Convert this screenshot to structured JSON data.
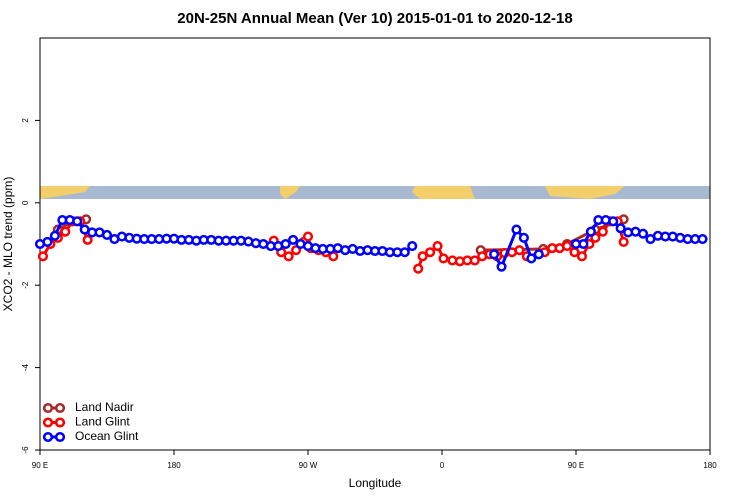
{
  "chart_data": {
    "type": "line",
    "title": "20N-25N Annual Mean (Ver 10)   2015-01-01 to 2020-12-18",
    "x_label": "Longitude",
    "y_label": "XCO2 - MLO trend (ppm)",
    "xlim": [
      90,
      540
    ],
    "ylim": [
      -6,
      4
    ],
    "xticks": [
      {
        "value": 90,
        "label": "90 E"
      },
      {
        "value": 180,
        "label": "180"
      },
      {
        "value": 270,
        "label": "90 W"
      },
      {
        "value": 360,
        "label": "0"
      },
      {
        "value": 450,
        "label": "90 E"
      },
      {
        "value": 540,
        "label": "180"
      }
    ],
    "yticks": [
      -6,
      -4,
      -2,
      0,
      2
    ],
    "legend": "bottom-left",
    "series": [
      {
        "name": "Land Nadir",
        "color": "#a52a2a",
        "x": [
          102,
          112,
          121,
          200,
          386,
          428,
          444,
          463,
          482
        ],
        "values": [
          -0.65,
          -0.45,
          -0.4,
          null,
          -1.15,
          -1.12,
          -1.0,
          -0.65,
          -0.4
        ]
      },
      {
        "name": "Land Glint",
        "color": "#ff0000",
        "x": [
          92,
          97,
          102,
          107,
          112,
          117,
          122,
          200,
          247,
          252,
          257,
          262,
          267,
          270,
          272,
          277,
          282,
          287,
          330,
          344,
          347,
          352,
          357,
          361,
          367,
          372,
          377,
          382,
          387,
          392,
          397,
          402,
          407,
          412,
          417,
          429,
          434,
          439,
          444,
          449,
          454,
          459,
          463,
          468,
          473,
          478,
          482
        ],
        "values": [
          -1.3,
          -1.0,
          -0.85,
          -0.7,
          -0.45,
          -0.45,
          -0.9,
          null,
          -0.92,
          -1.2,
          -1.3,
          -1.15,
          -0.95,
          -0.82,
          -1.1,
          -1.15,
          -1.2,
          -1.3,
          null,
          -1.6,
          -1.3,
          -1.2,
          -1.05,
          -1.35,
          -1.4,
          -1.42,
          -1.4,
          -1.4,
          -1.3,
          -1.25,
          -1.3,
          -1.22,
          -1.2,
          -1.15,
          -1.3,
          -1.2,
          -1.1,
          -1.1,
          -1.05,
          -1.2,
          -1.3,
          -1.0,
          -0.85,
          -0.7,
          -0.45,
          -0.45,
          -0.95
        ]
      },
      {
        "name": "Ocean Glint",
        "color": "#0000ff",
        "x": [
          90,
          95,
          100,
          105,
          110,
          115,
          120,
          125,
          130,
          135,
          140,
          145,
          150,
          155,
          160,
          165,
          170,
          175,
          180,
          185,
          190,
          195,
          200,
          205,
          210,
          215,
          220,
          225,
          230,
          235,
          240,
          245,
          250,
          255,
          260,
          265,
          270,
          275,
          280,
          285,
          290,
          295,
          300,
          305,
          310,
          315,
          320,
          325,
          330,
          335,
          340,
          370,
          395,
          400,
          410,
          415,
          420,
          425,
          437,
          450,
          455,
          460,
          465,
          470,
          475,
          480,
          485,
          490,
          495,
          500,
          505,
          510,
          515,
          520,
          525,
          530,
          535
        ],
        "values": [
          -1.0,
          -0.95,
          -0.8,
          -0.42,
          -0.42,
          -0.45,
          -0.65,
          -0.72,
          -0.72,
          -0.78,
          -0.88,
          -0.82,
          -0.85,
          -0.87,
          -0.88,
          -0.88,
          -0.88,
          -0.87,
          -0.87,
          -0.9,
          -0.9,
          -0.92,
          -0.9,
          -0.9,
          -0.92,
          -0.92,
          -0.92,
          -0.92,
          -0.94,
          -0.98,
          -1.0,
          -1.05,
          -1.05,
          -1.0,
          -0.9,
          -1.0,
          -1.05,
          -1.1,
          -1.12,
          -1.12,
          -1.1,
          -1.15,
          -1.12,
          -1.17,
          -1.15,
          -1.17,
          -1.17,
          -1.2,
          -1.2,
          -1.2,
          -1.05,
          null,
          -1.25,
          -1.55,
          -0.65,
          -0.85,
          -1.35,
          -1.25,
          null,
          -1.0,
          -1.0,
          -0.7,
          -0.42,
          -0.42,
          -0.45,
          -0.62,
          -0.72,
          -0.7,
          -0.75,
          -0.88,
          -0.8,
          -0.82,
          -0.82,
          -0.85,
          -0.88,
          -0.88,
          -0.88
        ]
      }
    ]
  }
}
